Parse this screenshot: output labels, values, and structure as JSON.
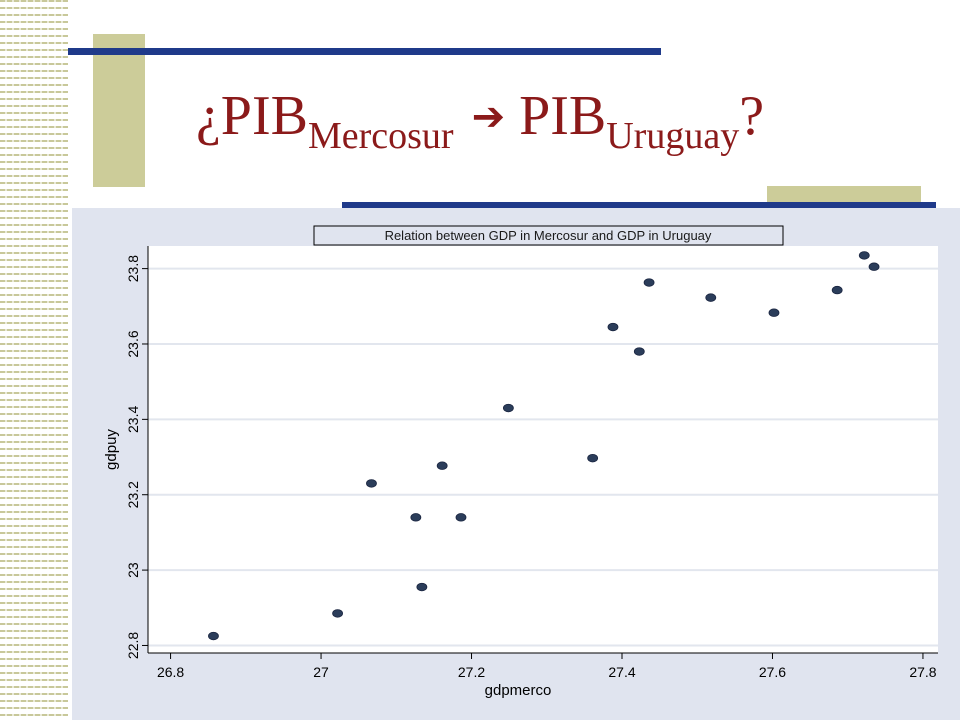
{
  "slide": {
    "title_prefix": "¿PIB",
    "title_sub1": "Mercosur",
    "arrow": "➔",
    "title_mid": "PIB",
    "title_sub2": "Uruguay",
    "title_suffix": "?"
  },
  "colors": {
    "title": "#8b1a1a",
    "accent_blue": "#1f3a8a",
    "accent_khaki": "#cccc99",
    "chart_bg": "#e0e4ef",
    "marker": "#2b3d5a"
  },
  "chart_data": {
    "type": "scatter",
    "title": "Relation between GDP in Mercosur and GDP in Uruguay",
    "xlabel": "gdpmerco",
    "ylabel": "gdpuy",
    "xlim": [
      26.77,
      27.82
    ],
    "ylim": [
      22.78,
      23.86
    ],
    "xticks": [
      "26.8",
      "27",
      "27.2",
      "27.4",
      "27.6",
      "27.8"
    ],
    "xtick_values": [
      26.8,
      27.0,
      27.2,
      27.4,
      27.6,
      27.8
    ],
    "yticks": [
      "22.8",
      "23",
      "23.2",
      "23.4",
      "23.6",
      "23.8"
    ],
    "ytick_values": [
      22.8,
      23.0,
      23.2,
      23.4,
      23.6,
      23.8
    ],
    "grid": "horizontal",
    "points": [
      {
        "x": 26.857,
        "y": 22.825
      },
      {
        "x": 27.022,
        "y": 22.885
      },
      {
        "x": 27.067,
        "y": 23.23
      },
      {
        "x": 27.126,
        "y": 23.14
      },
      {
        "x": 27.134,
        "y": 22.955
      },
      {
        "x": 27.161,
        "y": 23.277
      },
      {
        "x": 27.186,
        "y": 23.14
      },
      {
        "x": 27.249,
        "y": 23.43
      },
      {
        "x": 27.361,
        "y": 23.297
      },
      {
        "x": 27.388,
        "y": 23.645
      },
      {
        "x": 27.423,
        "y": 23.58
      },
      {
        "x": 27.436,
        "y": 23.763
      },
      {
        "x": 27.518,
        "y": 23.723
      },
      {
        "x": 27.602,
        "y": 23.683
      },
      {
        "x": 27.686,
        "y": 23.743
      },
      {
        "x": 27.722,
        "y": 23.835
      },
      {
        "x": 27.735,
        "y": 23.805
      }
    ]
  }
}
